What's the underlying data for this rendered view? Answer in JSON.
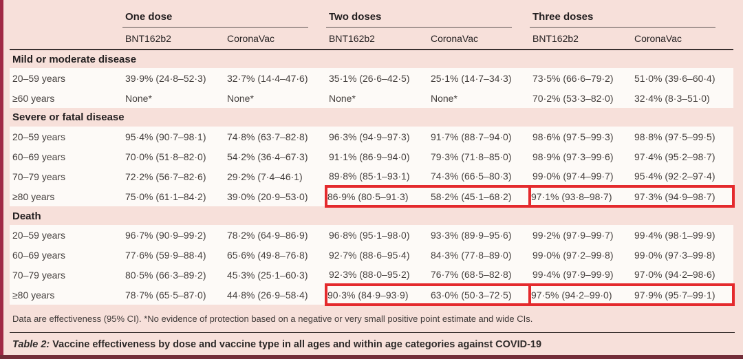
{
  "colors": {
    "background_pink": "#f7e0da",
    "row_band_white": "#fdfaf7",
    "left_stripe_maroon": "#a02945",
    "bottom_bar_maroon": "#732d38",
    "highlight_box_red": "#e42a2d"
  },
  "table": {
    "col_groups": [
      {
        "label": "One dose"
      },
      {
        "label": "Two doses"
      },
      {
        "label": "Three doses"
      }
    ],
    "sub_headers": [
      "BNT162b2",
      "CoronaVac",
      "BNT162b2",
      "CoronaVac",
      "BNT162b2",
      "CoronaVac"
    ],
    "sections": [
      {
        "title": "Mild or moderate disease",
        "rows": [
          {
            "label": "20–59 years",
            "values": [
              "39·9% (24·8–52·3)",
              "32·7% (14·4–47·6)",
              "35·1% (26·6–42·5)",
              "25·1% (14·7–34·3)",
              "73·5% (66·6–79·2)",
              "51·0% (39·6–60·4)"
            ],
            "highlight_groups": []
          },
          {
            "label": "≥60 years",
            "values": [
              "None*",
              "None*",
              "None*",
              "None*",
              "70·2% (53·3–82·0)",
              "32·4% (8·3–51·0)"
            ],
            "highlight_groups": []
          }
        ]
      },
      {
        "title": "Severe or fatal disease",
        "rows": [
          {
            "label": "20–59 years",
            "values": [
              "95·4% (90·7–98·1)",
              "74·8% (63·7–82·8)",
              "96·3% (94·9–97·3)",
              "91·7% (88·7–94·0)",
              "98·6% (97·5–99·3)",
              "98·8% (97·5–99·5)"
            ],
            "highlight_groups": []
          },
          {
            "label": "60–69 years",
            "values": [
              "70·0% (51·8–82·0)",
              "54·2% (36·4–67·3)",
              "91·1% (86·9–94·0)",
              "79·3% (71·8–85·0)",
              "98·9% (97·3–99·6)",
              "97·4% (95·2–98·7)"
            ],
            "highlight_groups": []
          },
          {
            "label": "70–79 years",
            "values": [
              "72·2% (56·7–82·6)",
              "29·2% (7·4–46·1)",
              "89·8% (85·1–93·1)",
              "74·3% (66·5–80·3)",
              "99·0% (97·4–99·7)",
              "95·4% (92·2–97·4)"
            ],
            "highlight_groups": []
          },
          {
            "label": "≥80 years",
            "values": [
              "75·0% (61·1–84·2)",
              "39·0% (20·9–53·0)",
              "86·9% (80·5–91·3)",
              "58·2% (45·1–68·2)",
              "97·1% (93·8–98·7)",
              "97·3% (94·9–98·7)"
            ],
            "highlight_groups": [
              1,
              2
            ]
          }
        ]
      },
      {
        "title": "Death",
        "rows": [
          {
            "label": "20–59 years",
            "values": [
              "96·7% (90·9–99·2)",
              "78·2% (64·9–86·9)",
              "96·8% (95·1–98·0)",
              "93·3% (89·9–95·6)",
              "99·2% (97·9–99·7)",
              "99·4% (98·1–99·9)"
            ],
            "highlight_groups": []
          },
          {
            "label": "60–69 years",
            "values": [
              "77·6% (59·9–88·4)",
              "65·6% (49·8–76·8)",
              "92·7% (88·6–95·4)",
              "84·3% (77·8–89·0)",
              "99·0% (97·2–99·8)",
              "99·0% (97·3–99·8)"
            ],
            "highlight_groups": []
          },
          {
            "label": "70–79 years",
            "values": [
              "80·5% (66·3–89·2)",
              "45·3% (25·1–60·3)",
              "92·3% (88·0–95·2)",
              "76·7% (68·5–82·8)",
              "99·4% (97·9–99·9)",
              "97·0% (94·2–98·6)"
            ],
            "highlight_groups": []
          },
          {
            "label": "≥80 years",
            "values": [
              "78·7% (65·5–87·0)",
              "44·8% (26·9–58·4)",
              "90·3% (84·9–93·9)",
              "63·0% (50·3–72·5)",
              "97·5% (94·2–99·0)",
              "97·9% (95·7–99·1)"
            ],
            "highlight_groups": [
              1,
              2
            ]
          }
        ]
      }
    ],
    "footnote": "Data are effectiveness (95% CI). *No evidence of protection based on a negative or very small positive point estimate and wide CIs.",
    "caption_label": "Table 2:",
    "caption_text": " Vaccine effectiveness by dose and vaccine type in all ages and within age categories against COVID-19"
  }
}
